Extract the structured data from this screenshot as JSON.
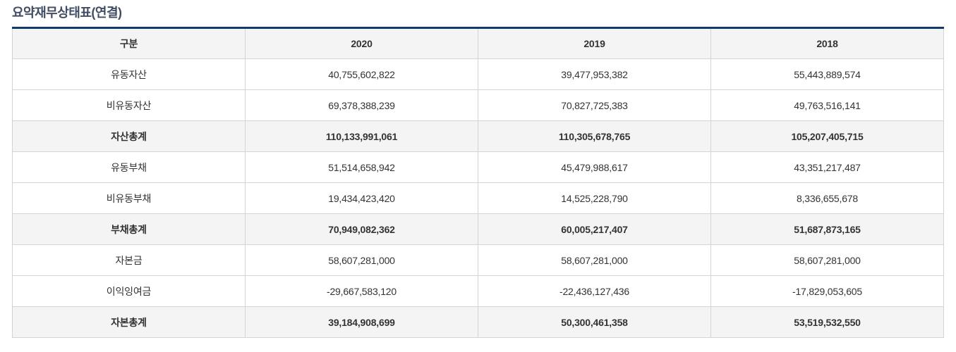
{
  "title": "요약재무상태표(연결)",
  "colors": {
    "accent_top_border": "#123a6e",
    "cell_border": "#d4d4d4",
    "shaded_row_background": "#f4f4f5",
    "text": "#333333",
    "title_text": "#414d63"
  },
  "table": {
    "columns": [
      "구분",
      "2020",
      "2019",
      "2018"
    ],
    "rows": [
      {
        "label": "유동자산",
        "values": [
          "40,755,602,822",
          "39,477,953,382",
          "55,443,889,574"
        ],
        "emphasis": false
      },
      {
        "label": "비유동자산",
        "values": [
          "69,378,388,239",
          "70,827,725,383",
          "49,763,516,141"
        ],
        "emphasis": false
      },
      {
        "label": "자산총계",
        "values": [
          "110,133,991,061",
          "110,305,678,765",
          "105,207,405,715"
        ],
        "emphasis": true
      },
      {
        "label": "유동부채",
        "values": [
          "51,514,658,942",
          "45,479,988,617",
          "43,351,217,487"
        ],
        "emphasis": false
      },
      {
        "label": "비유동부채",
        "values": [
          "19,434,423,420",
          "14,525,228,790",
          "8,336,655,678"
        ],
        "emphasis": false
      },
      {
        "label": "부채총계",
        "values": [
          "70,949,082,362",
          "60,005,217,407",
          "51,687,873,165"
        ],
        "emphasis": true
      },
      {
        "label": "자본금",
        "values": [
          "58,607,281,000",
          "58,607,281,000",
          "58,607,281,000"
        ],
        "emphasis": false
      },
      {
        "label": "이익잉여금",
        "values": [
          "-29,667,583,120",
          "-22,436,127,436",
          "-17,829,053,605"
        ],
        "emphasis": false
      },
      {
        "label": "자본총계",
        "values": [
          "39,184,908,699",
          "50,300,461,358",
          "53,519,532,550"
        ],
        "emphasis": true
      }
    ]
  },
  "chart_data": {
    "type": "table",
    "title": "요약재무상태표(연결)",
    "columns": [
      "구분",
      "2020",
      "2019",
      "2018"
    ],
    "rows": [
      [
        "유동자산",
        40755602822,
        39477953382,
        55443889574
      ],
      [
        "비유동자산",
        69378388239,
        70827725383,
        49763516141
      ],
      [
        "자산총계",
        110133991061,
        110305678765,
        105207405715
      ],
      [
        "유동부채",
        51514658942,
        45479988617,
        43351217487
      ],
      [
        "비유동부채",
        19434423420,
        14525228790,
        8336655678
      ],
      [
        "부채총계",
        70949082362,
        60005217407,
        51687873165
      ],
      [
        "자본금",
        58607281000,
        58607281000,
        58607281000
      ],
      [
        "이익잉여금",
        -29667583120,
        -22436127436,
        -17829053605
      ],
      [
        "자본총계",
        39184908699,
        50300461358,
        53519532550
      ]
    ]
  }
}
